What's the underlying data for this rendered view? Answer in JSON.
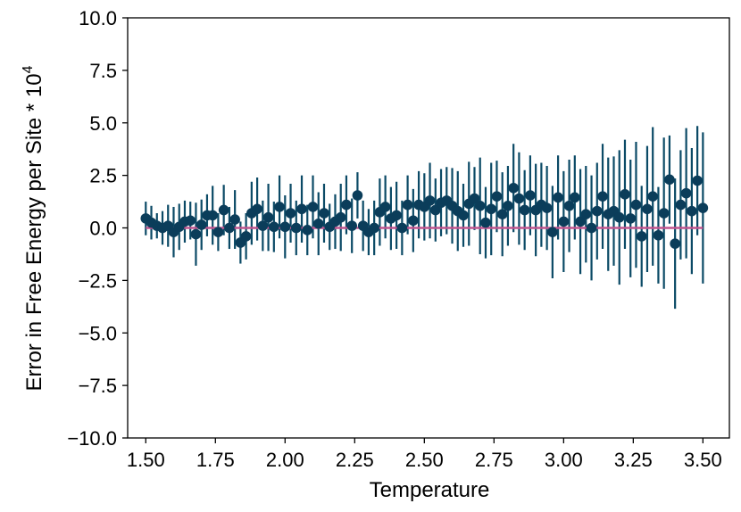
{
  "chart_data": {
    "type": "scatter",
    "title": "",
    "xlabel": "Temperature",
    "ylabel": "Error in Free Energy per Site * 10",
    "ylabel_superscript": "4",
    "xlim": [
      1.435,
      3.595
    ],
    "ylim": [
      -10,
      10
    ],
    "xticks": [
      1.5,
      1.75,
      2.0,
      2.25,
      2.5,
      2.75,
      3.0,
      3.25,
      3.5
    ],
    "xtick_labels": [
      "1.50",
      "1.75",
      "2.00",
      "2.25",
      "2.50",
      "2.75",
      "3.00",
      "3.25",
      "3.50"
    ],
    "yticks": [
      -10,
      -7.5,
      -5,
      -2.5,
      0,
      2.5,
      5,
      7.5,
      10
    ],
    "ytick_labels": [
      "−10.0",
      "−7.5",
      "−5.0",
      "−2.5",
      "0.0",
      "2.5",
      "5.0",
      "7.5",
      "10.0"
    ],
    "grid": false,
    "colors": {
      "points": "#0b3d5a",
      "errorbars": "#0b4a66",
      "reference_line": "#c0558f"
    },
    "reference_line": {
      "y": 0,
      "x_range": [
        1.5,
        3.5
      ]
    },
    "series": [
      {
        "x": [
          1.5,
          1.52,
          1.54,
          1.56,
          1.58,
          1.6,
          1.62,
          1.64,
          1.66,
          1.68,
          1.7,
          1.72,
          1.74,
          1.76,
          1.78,
          1.8,
          1.82,
          1.84,
          1.86,
          1.88,
          1.9,
          1.92,
          1.94,
          1.96,
          1.98,
          2.0,
          2.02,
          2.04,
          2.06,
          2.08,
          2.1,
          2.12,
          2.14,
          2.16,
          2.18,
          2.2,
          2.22,
          2.24,
          2.26,
          2.28,
          2.3,
          2.32,
          2.34,
          2.36,
          2.38,
          2.4,
          2.42,
          2.44,
          2.46,
          2.48,
          2.5,
          2.52,
          2.54,
          2.56,
          2.58,
          2.6,
          2.62,
          2.64,
          2.66,
          2.68,
          2.7,
          2.72,
          2.74,
          2.76,
          2.78,
          2.8,
          2.82,
          2.84,
          2.86,
          2.88,
          2.9,
          2.92,
          2.94,
          2.96,
          2.98,
          3.0,
          3.02,
          3.04,
          3.06,
          3.08,
          3.1,
          3.12,
          3.14,
          3.16,
          3.18,
          3.2,
          3.22,
          3.24,
          3.26,
          3.28,
          3.3,
          3.32,
          3.34,
          3.36,
          3.38,
          3.4,
          3.42,
          3.44,
          3.46,
          3.48,
          3.5
        ],
        "y": [
          0.45,
          0.25,
          0.1,
          0.0,
          0.1,
          -0.2,
          0.05,
          0.3,
          0.35,
          -0.3,
          0.15,
          0.6,
          0.6,
          -0.2,
          0.85,
          0.0,
          0.4,
          -0.7,
          -0.4,
          0.7,
          0.9,
          0.1,
          0.5,
          0.05,
          1.0,
          0.05,
          0.7,
          0.0,
          0.9,
          -0.1,
          1.0,
          0.2,
          0.7,
          0.05,
          0.3,
          0.5,
          1.1,
          0.1,
          1.55,
          0.1,
          -0.2,
          0.0,
          0.75,
          1.0,
          0.45,
          0.6,
          0.0,
          1.1,
          0.35,
          1.1,
          1.0,
          1.3,
          0.85,
          1.2,
          1.3,
          1.05,
          0.8,
          0.6,
          1.15,
          1.4,
          1.05,
          0.25,
          0.9,
          1.5,
          0.65,
          1.05,
          1.9,
          1.4,
          0.85,
          1.55,
          0.85,
          1.1,
          0.95,
          -0.2,
          1.45,
          0.3,
          1.05,
          1.45,
          0.3,
          0.65,
          0.0,
          0.8,
          1.5,
          0.65,
          0.8,
          0.5,
          1.6,
          0.45,
          1.1,
          -0.4,
          0.9,
          1.5,
          -0.35,
          0.7,
          2.3,
          -0.75,
          1.1,
          1.65,
          0.8,
          2.25,
          0.95
        ],
        "err": [
          0.8,
          0.8,
          0.6,
          0.8,
          1.0,
          1.2,
          1.1,
          1.0,
          0.9,
          1.5,
          1.2,
          1.0,
          1.4,
          0.9,
          1.2,
          1.0,
          1.4,
          1.0,
          1.1,
          1.5,
          1.5,
          1.2,
          1.6,
          1.2,
          1.5,
          1.5,
          1.4,
          1.3,
          1.6,
          1.2,
          1.5,
          1.5,
          1.4,
          1.1,
          1.3,
          1.6,
          1.4,
          1.3,
          1.1,
          1.2,
          1.1,
          1.3,
          1.6,
          1.5,
          1.5,
          1.6,
          1.3,
          1.4,
          1.5,
          1.6,
          1.6,
          1.8,
          1.5,
          1.6,
          1.6,
          1.8,
          1.9,
          1.5,
          2.0,
          1.5,
          2.3,
          1.7,
          2.2,
          1.7,
          2.0,
          1.9,
          2.1,
          2.2,
          1.9,
          1.9,
          2.2,
          2.0,
          2.0,
          2.2,
          2.0,
          2.4,
          2.2,
          2.0,
          2.5,
          2.3,
          2.5,
          2.3,
          2.5,
          2.7,
          2.6,
          3.2,
          2.6,
          2.8,
          3.0,
          2.4,
          3.0,
          3.3,
          2.3,
          3.6,
          2.1,
          3.1,
          2.6,
          3.1,
          3.0,
          2.6,
          3.6
        ]
      }
    ]
  }
}
